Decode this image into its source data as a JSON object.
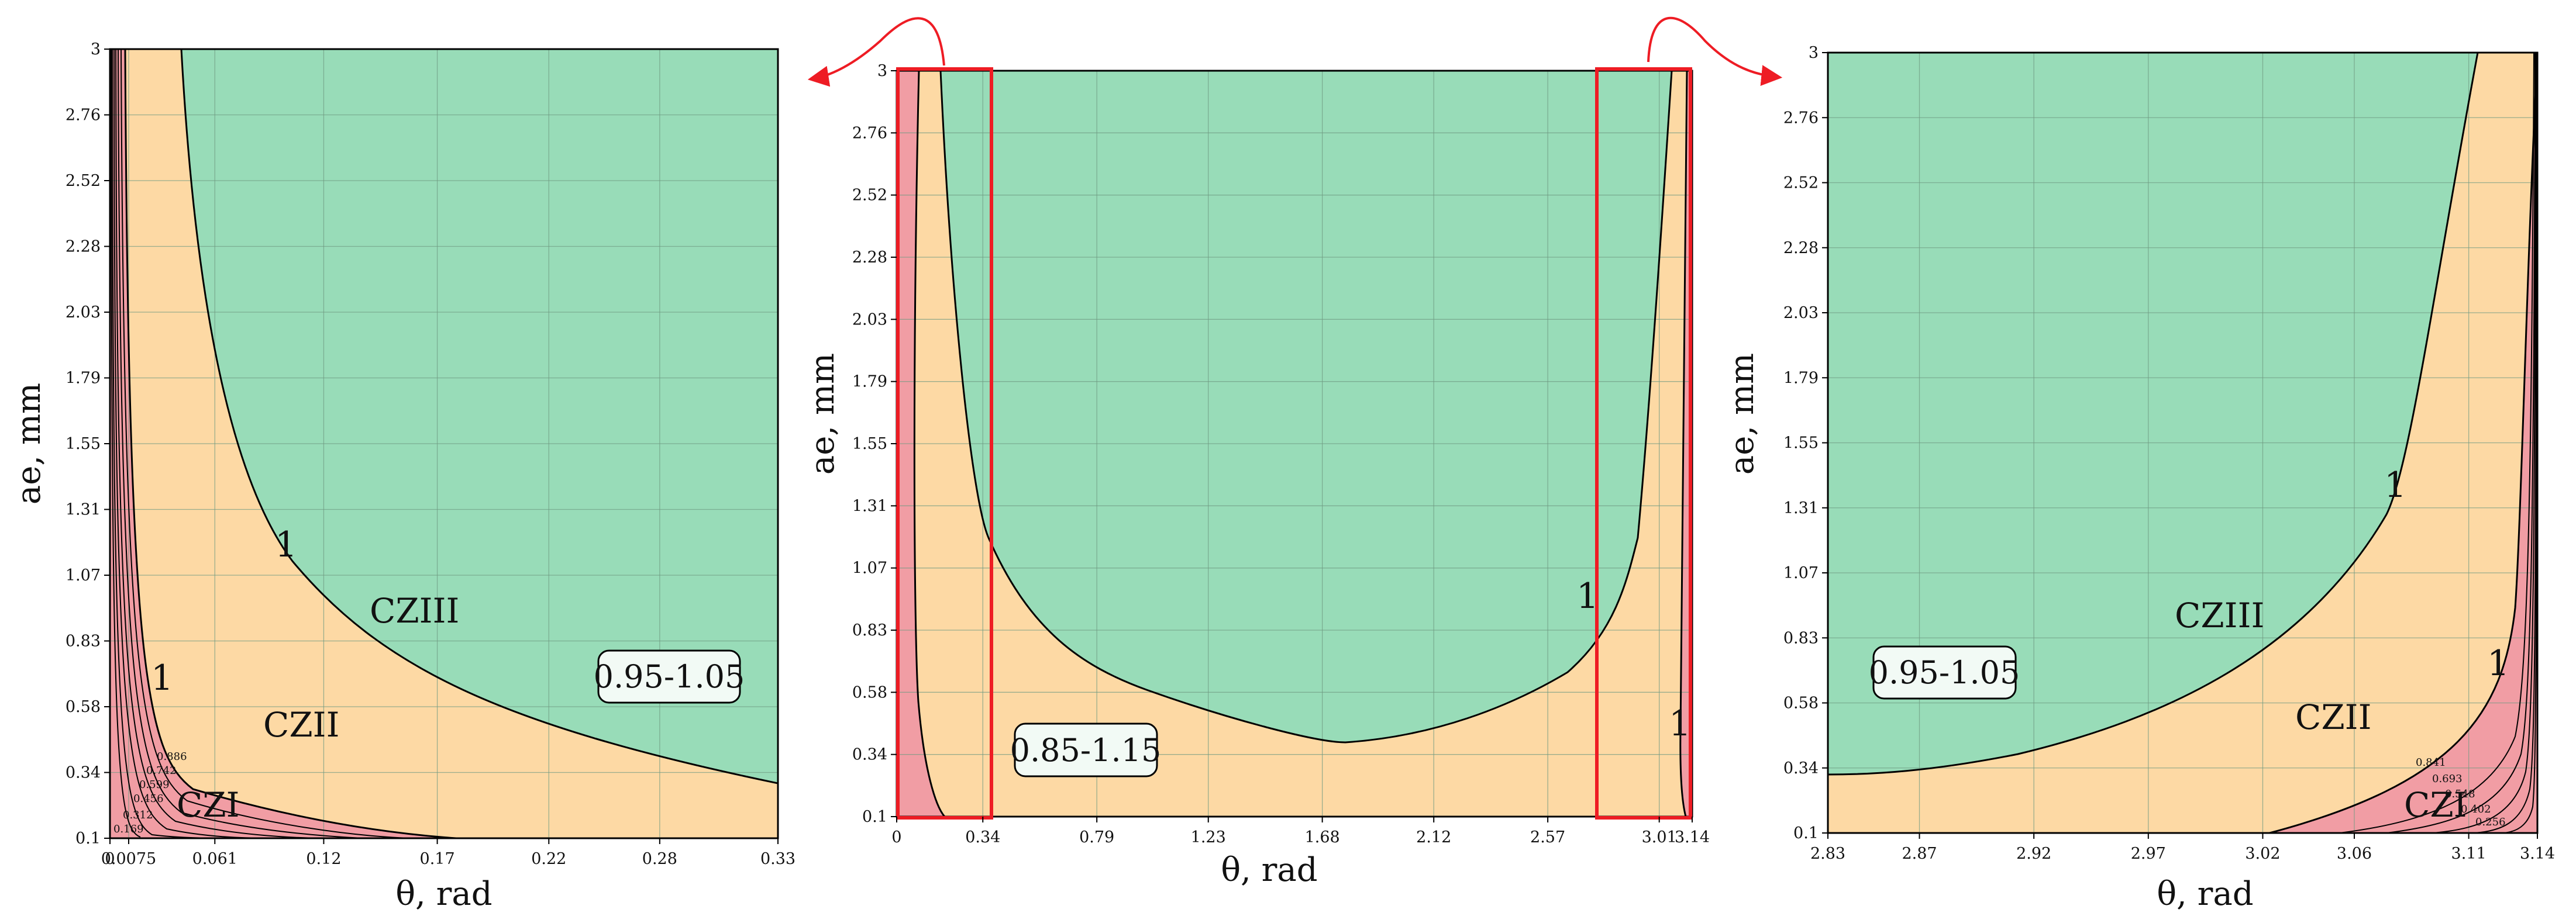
{
  "colors": {
    "zone_red": "#f19da4",
    "zone_orange": "#fdd9a4",
    "zone_green": "#98dcb8",
    "grid": "#6f9a82",
    "highlight": "#ee1c24",
    "band_box_fill": "#f2faf5"
  },
  "chart_data": [
    {
      "type": "contour",
      "id": "left",
      "xlabel": "θ, rad",
      "ylabel": "ae, mm",
      "xlim": [
        0,
        0.33
      ],
      "ylim": [
        0.1,
        3
      ],
      "xticks": [
        0,
        0.0075,
        0.061,
        0.12,
        0.17,
        0.22,
        0.28,
        0.33
      ],
      "xtick_labels": [
        "0",
        "0.0075",
        "0.061",
        "0.12",
        "0.17",
        "0.22",
        "0.28",
        "0.33"
      ],
      "yticks": [
        0.1,
        0.34,
        0.58,
        0.83,
        1.07,
        1.31,
        1.55,
        1.79,
        2.03,
        2.28,
        2.52,
        2.76,
        3
      ],
      "ytick_labels": [
        "0.1",
        "0.34",
        "0.58",
        "0.83",
        "1.07",
        "1.31",
        "1.55",
        "1.79",
        "2.03",
        "2.28",
        "2.52",
        "2.76",
        "3"
      ],
      "band_label": "0.95-1.05",
      "zones": [
        "CZI",
        "CZII",
        "CZIII"
      ],
      "contour_label": "1",
      "minor_contour_labels": [
        "0.886",
        "0.742",
        "0.599",
        "0.456",
        "0.312",
        "0.169"
      ],
      "boundary_green": [
        [
          0.036,
          3
        ],
        [
          0.06,
          2.2
        ],
        [
          0.085,
          1.55
        ],
        [
          0.11,
          1.12
        ],
        [
          0.14,
          0.85
        ],
        [
          0.17,
          0.67
        ],
        [
          0.2,
          0.56
        ],
        [
          0.24,
          0.45
        ],
        [
          0.28,
          0.38
        ],
        [
          0.33,
          0.31
        ]
      ],
      "boundary_red": [
        [
          0.0075,
          0.97
        ],
        [
          0.009,
          0.75
        ],
        [
          0.012,
          0.55
        ],
        [
          0.016,
          0.42
        ],
        [
          0.022,
          0.32
        ],
        [
          0.04,
          0.24
        ],
        [
          0.07,
          0.185
        ],
        [
          0.1,
          0.15
        ],
        [
          0.14,
          0.12
        ],
        [
          0.17,
          0.1
        ]
      ]
    },
    {
      "type": "contour",
      "id": "center",
      "xlabel": "θ, rad",
      "ylabel": "ae, mm",
      "xlim": [
        0,
        3.14
      ],
      "ylim": [
        0.1,
        3
      ],
      "xticks": [
        0,
        0.34,
        0.79,
        1.23,
        1.68,
        2.12,
        2.57,
        3.01,
        3.14
      ],
      "xtick_labels": [
        "0",
        "0.34",
        "0.79",
        "1.23",
        "1.68",
        "2.12",
        "2.57",
        "3.01",
        "3.14"
      ],
      "yticks": [
        0.1,
        0.34,
        0.58,
        0.83,
        1.07,
        1.31,
        1.55,
        1.79,
        2.03,
        2.28,
        2.52,
        2.76,
        3
      ],
      "ytick_labels": [
        "0.1",
        "0.34",
        "0.58",
        "0.83",
        "1.07",
        "1.31",
        "1.55",
        "1.79",
        "2.03",
        "2.28",
        "2.52",
        "2.76",
        "3"
      ],
      "band_label": "0.85-1.15",
      "contour_labels": [
        "1",
        "1"
      ],
      "highlight_ranges": [
        [
          0,
          0.34
        ],
        [
          2.8,
          3.14
        ]
      ],
      "boundary_green": [
        [
          0.22,
          3
        ],
        [
          0.26,
          2.4
        ],
        [
          0.3,
          1.7
        ],
        [
          0.34,
          1.2
        ],
        [
          0.45,
          0.95
        ],
        [
          0.6,
          0.75
        ],
        [
          0.8,
          0.62
        ],
        [
          1.1,
          0.52
        ],
        [
          1.4,
          0.47
        ],
        [
          1.7,
          0.46
        ],
        [
          2.0,
          0.5
        ],
        [
          2.3,
          0.6
        ],
        [
          2.55,
          0.75
        ],
        [
          2.7,
          0.9
        ],
        [
          2.82,
          1.3
        ],
        [
          2.9,
          1.8
        ],
        [
          2.98,
          2.5
        ],
        [
          3.02,
          3
        ]
      ],
      "boundary_red_left": [
        [
          0.09,
          3
        ],
        [
          0.075,
          2.0
        ],
        [
          0.07,
          1.0
        ],
        [
          0.072,
          0.5
        ],
        [
          0.095,
          0.28
        ],
        [
          0.14,
          0.15
        ],
        [
          0.19,
          0.1
        ]
      ],
      "boundary_red_right": [
        [
          3.13,
          3
        ],
        [
          3.12,
          2.0
        ],
        [
          3.115,
          1.0
        ],
        [
          3.11,
          0.4
        ],
        [
          3.08,
          0.2
        ],
        [
          3.04,
          0.1
        ]
      ]
    },
    {
      "type": "contour",
      "id": "right",
      "xlabel": "θ, rad",
      "ylabel": "ae, mm",
      "xlim": [
        2.83,
        3.14
      ],
      "ylim": [
        0.1,
        3
      ],
      "xticks": [
        2.83,
        2.87,
        2.92,
        2.97,
        3.02,
        3.06,
        3.11,
        3.14
      ],
      "xtick_labels": [
        "2.83",
        "2.87",
        "2.92",
        "2.97",
        "3.02",
        "3.06",
        "3.11",
        "3.14"
      ],
      "yticks": [
        0.1,
        0.34,
        0.58,
        0.83,
        1.07,
        1.31,
        1.55,
        1.79,
        2.03,
        2.28,
        2.52,
        2.76,
        3
      ],
      "ytick_labels": [
        "0.1",
        "0.34",
        "0.58",
        "0.83",
        "1.07",
        "1.31",
        "1.55",
        "1.79",
        "2.03",
        "2.28",
        "2.52",
        "2.76",
        "3"
      ],
      "band_label": "0.95-1.05",
      "zones": [
        "CZIII",
        "CZII",
        "CZI"
      ],
      "contour_labels": [
        "1",
        "1"
      ],
      "minor_contour_labels": [
        "0.841",
        "0.693",
        "0.548",
        "0.402",
        "0.256"
      ],
      "boundary_green": [
        [
          2.83,
          0.31
        ],
        [
          2.88,
          0.37
        ],
        [
          2.93,
          0.45
        ],
        [
          2.97,
          0.56
        ],
        [
          3.01,
          0.7
        ],
        [
          3.04,
          0.87
        ],
        [
          3.07,
          1.12
        ],
        [
          3.09,
          1.45
        ],
        [
          3.11,
          2.0
        ],
        [
          3.125,
          2.6
        ],
        [
          3.132,
          3
        ]
      ],
      "boundary_red": [
        [
          3.0,
          0.1
        ],
        [
          3.04,
          0.14
        ],
        [
          3.07,
          0.2
        ],
        [
          3.095,
          0.32
        ],
        [
          3.11,
          0.5
        ],
        [
          3.125,
          0.8
        ],
        [
          3.132,
          1.2
        ],
        [
          3.136,
          2.0
        ],
        [
          3.138,
          3
        ]
      ]
    }
  ]
}
